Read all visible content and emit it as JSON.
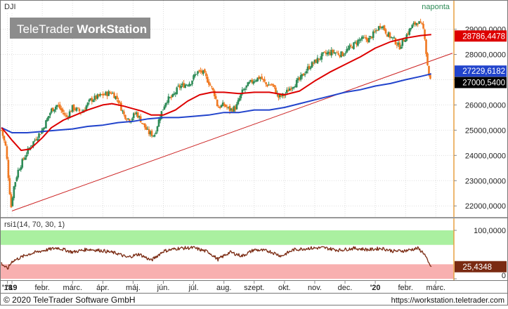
{
  "window": {
    "symbol": "DJI",
    "interval": "naponta",
    "watermark_light": "TeleTrader",
    "watermark_bold": "WorkStation"
  },
  "footer": {
    "copyright": "© 2020 TeleTrader Software GmbH",
    "url": "https://workstation.teletrader.com"
  },
  "colors": {
    "up_candle": "#2e8b57",
    "down_candle": "#f07820",
    "ma_short": "#dd0000",
    "ma_long": "#2244cc",
    "trendline": "#cc2222",
    "rsi_line": "#7a2a12",
    "rsi_overbought_zone": "#aaf0a0",
    "rsi_oversold_zone": "#f8b0b0",
    "last_price_badge": "#000000",
    "axis_border": "#e8a040",
    "grid": "#dddddd"
  },
  "chart_data": [
    {
      "type": "candlestick",
      "name": "price",
      "ylim": [
        21700,
        29600
      ],
      "y_ticks": [
        "22000,0000",
        "23000,0000",
        "24000,0000",
        "25000,0000",
        "26000,0000",
        "27000,0000",
        "28000,0000",
        "29000,0000"
      ],
      "y_tick_values": [
        22000,
        23000,
        24000,
        25000,
        26000,
        27000,
        28000,
        29000
      ],
      "x_ticks": [
        "'18",
        "'19",
        "febr.",
        "márc.",
        "ápr.",
        "máj.",
        "jún.",
        "júl.",
        "aug.",
        "szept.",
        "okt.",
        "nov.",
        "dec.",
        "'20",
        "febr.",
        "márc."
      ],
      "x_tick_months": [
        -0.15,
        0.0,
        1.0,
        2.0,
        3.0,
        4.0,
        5.0,
        6.0,
        7.0,
        8.0,
        9.0,
        10.0,
        11.0,
        12.0,
        13.0,
        14.0
      ],
      "x_range_months": [
        -0.35,
        14.55
      ],
      "close_path": [
        [
          -0.35,
          25000
        ],
        [
          -0.2,
          24300
        ],
        [
          -0.1,
          22900
        ],
        [
          -0.03,
          21950
        ],
        [
          0.05,
          22700
        ],
        [
          0.2,
          23400
        ],
        [
          0.4,
          23900
        ],
        [
          0.6,
          24350
        ],
        [
          0.8,
          24700
        ],
        [
          1.0,
          25000
        ],
        [
          1.3,
          25800
        ],
        [
          1.5,
          26000
        ],
        [
          1.8,
          25500
        ],
        [
          2.0,
          25900
        ],
        [
          2.3,
          25700
        ],
        [
          2.6,
          26200
        ],
        [
          3.0,
          26400
        ],
        [
          3.3,
          26500
        ],
        [
          3.5,
          26200
        ],
        [
          3.7,
          25600
        ],
        [
          3.9,
          25400
        ],
        [
          4.1,
          25700
        ],
        [
          4.3,
          25300
        ],
        [
          4.5,
          24900
        ],
        [
          4.7,
          24800
        ],
        [
          4.9,
          25600
        ],
        [
          5.1,
          26200
        ],
        [
          5.3,
          26300
        ],
        [
          5.5,
          26700
        ],
        [
          5.7,
          26800
        ],
        [
          5.9,
          26900
        ],
        [
          6.1,
          27300
        ],
        [
          6.3,
          27300
        ],
        [
          6.5,
          26900
        ],
        [
          6.7,
          26400
        ],
        [
          6.8,
          25900
        ],
        [
          7.0,
          26000
        ],
        [
          7.2,
          25800
        ],
        [
          7.4,
          25900
        ],
        [
          7.6,
          26500
        ],
        [
          7.8,
          26800
        ],
        [
          8.0,
          27000
        ],
        [
          8.2,
          27100
        ],
        [
          8.4,
          26800
        ],
        [
          8.6,
          26800
        ],
        [
          8.8,
          26300
        ],
        [
          9.0,
          26400
        ],
        [
          9.2,
          26700
        ],
        [
          9.5,
          27000
        ],
        [
          9.8,
          27500
        ],
        [
          10.0,
          27700
        ],
        [
          10.3,
          28000
        ],
        [
          10.6,
          28100
        ],
        [
          10.9,
          28000
        ],
        [
          11.2,
          28300
        ],
        [
          11.5,
          28600
        ],
        [
          11.8,
          28600
        ],
        [
          12.0,
          28900
        ],
        [
          12.2,
          29200
        ],
        [
          12.4,
          28800
        ],
        [
          12.6,
          28600
        ],
        [
          12.8,
          28300
        ],
        [
          13.0,
          28700
        ],
        [
          13.2,
          29100
        ],
        [
          13.4,
          29300
        ],
        [
          13.55,
          29100
        ],
        [
          13.62,
          28900
        ],
        [
          13.7,
          27800
        ],
        [
          13.8,
          27000
        ],
        [
          13.85,
          27000
        ]
      ],
      "ma_short": {
        "label": "28786,4478",
        "points": [
          [
            -0.35,
            25100
          ],
          [
            -0.2,
            24900
          ],
          [
            0.0,
            24600
          ],
          [
            0.3,
            24200
          ],
          [
            0.6,
            24250
          ],
          [
            1.0,
            24700
          ],
          [
            1.3,
            25100
          ],
          [
            1.7,
            25400
          ],
          [
            2.0,
            25550
          ],
          [
            2.5,
            25800
          ],
          [
            3.0,
            26000
          ],
          [
            3.3,
            26050
          ],
          [
            3.7,
            25950
          ],
          [
            4.0,
            25850
          ],
          [
            4.3,
            25750
          ],
          [
            4.6,
            25600
          ],
          [
            5.0,
            25600
          ],
          [
            5.4,
            25800
          ],
          [
            5.8,
            26150
          ],
          [
            6.2,
            26400
          ],
          [
            6.6,
            26500
          ],
          [
            7.0,
            26500
          ],
          [
            7.5,
            26450
          ],
          [
            8.0,
            26500
          ],
          [
            8.5,
            26500
          ],
          [
            9.0,
            26400
          ],
          [
            9.5,
            26550
          ],
          [
            10.0,
            26950
          ],
          [
            10.5,
            27300
          ],
          [
            11.0,
            27600
          ],
          [
            11.5,
            27900
          ],
          [
            12.0,
            28250
          ],
          [
            12.5,
            28500
          ],
          [
            13.0,
            28650
          ],
          [
            13.5,
            28750
          ],
          [
            13.85,
            28786
          ]
        ]
      },
      "ma_long": {
        "label": "27229,6182",
        "points": [
          [
            -0.35,
            25100
          ],
          [
            0.0,
            24900
          ],
          [
            0.5,
            24900
          ],
          [
            1.0,
            24950
          ],
          [
            1.5,
            25000
          ],
          [
            2.0,
            25050
          ],
          [
            2.5,
            25150
          ],
          [
            3.0,
            25200
          ],
          [
            3.5,
            25300
          ],
          [
            4.0,
            25350
          ],
          [
            4.5,
            25450
          ],
          [
            5.0,
            25500
          ],
          [
            5.5,
            25500
          ],
          [
            6.0,
            25550
          ],
          [
            6.5,
            25600
          ],
          [
            7.0,
            25700
          ],
          [
            7.5,
            25700
          ],
          [
            8.0,
            25800
          ],
          [
            8.5,
            25800
          ],
          [
            9.0,
            25900
          ],
          [
            9.5,
            26050
          ],
          [
            10.0,
            26200
          ],
          [
            10.5,
            26350
          ],
          [
            11.0,
            26500
          ],
          [
            11.5,
            26600
          ],
          [
            12.0,
            26750
          ],
          [
            12.5,
            26850
          ],
          [
            13.0,
            27000
          ],
          [
            13.5,
            27130
          ],
          [
            13.85,
            27229
          ]
        ]
      },
      "trendline": {
        "start": [
          0.0,
          21800
        ],
        "end": [
          14.55,
          28050
        ]
      },
      "last_price": {
        "label": "27000,5400",
        "value": 27000
      }
    },
    {
      "type": "line",
      "name": "rsi1(14, 70, 30, 1)",
      "ylim": [
        0,
        100
      ],
      "y_ticks": [
        "100,0000",
        "0"
      ],
      "y_tick_values": [
        100,
        0
      ],
      "overbought": 70,
      "oversold": 30,
      "last_value_label": "25,4348",
      "points": [
        [
          -0.35,
          32
        ],
        [
          -0.15,
          20
        ],
        [
          0.0,
          36
        ],
        [
          0.5,
          50
        ],
        [
          1.0,
          58
        ],
        [
          1.5,
          64
        ],
        [
          2.0,
          55
        ],
        [
          2.5,
          61
        ],
        [
          3.0,
          58
        ],
        [
          3.5,
          52
        ],
        [
          3.8,
          44
        ],
        [
          4.2,
          51
        ],
        [
          4.6,
          38
        ],
        [
          5.0,
          57
        ],
        [
          5.5,
          63
        ],
        [
          6.0,
          64
        ],
        [
          6.5,
          55
        ],
        [
          6.8,
          40
        ],
        [
          7.2,
          55
        ],
        [
          7.6,
          47
        ],
        [
          8.0,
          60
        ],
        [
          8.5,
          57
        ],
        [
          8.9,
          47
        ],
        [
          9.3,
          60
        ],
        [
          9.8,
          63
        ],
        [
          10.3,
          64
        ],
        [
          10.8,
          59
        ],
        [
          11.3,
          63
        ],
        [
          11.8,
          60
        ],
        [
          12.2,
          63
        ],
        [
          12.6,
          57
        ],
        [
          13.0,
          58
        ],
        [
          13.4,
          63
        ],
        [
          13.62,
          52
        ],
        [
          13.75,
          33
        ],
        [
          13.85,
          25
        ]
      ]
    }
  ]
}
